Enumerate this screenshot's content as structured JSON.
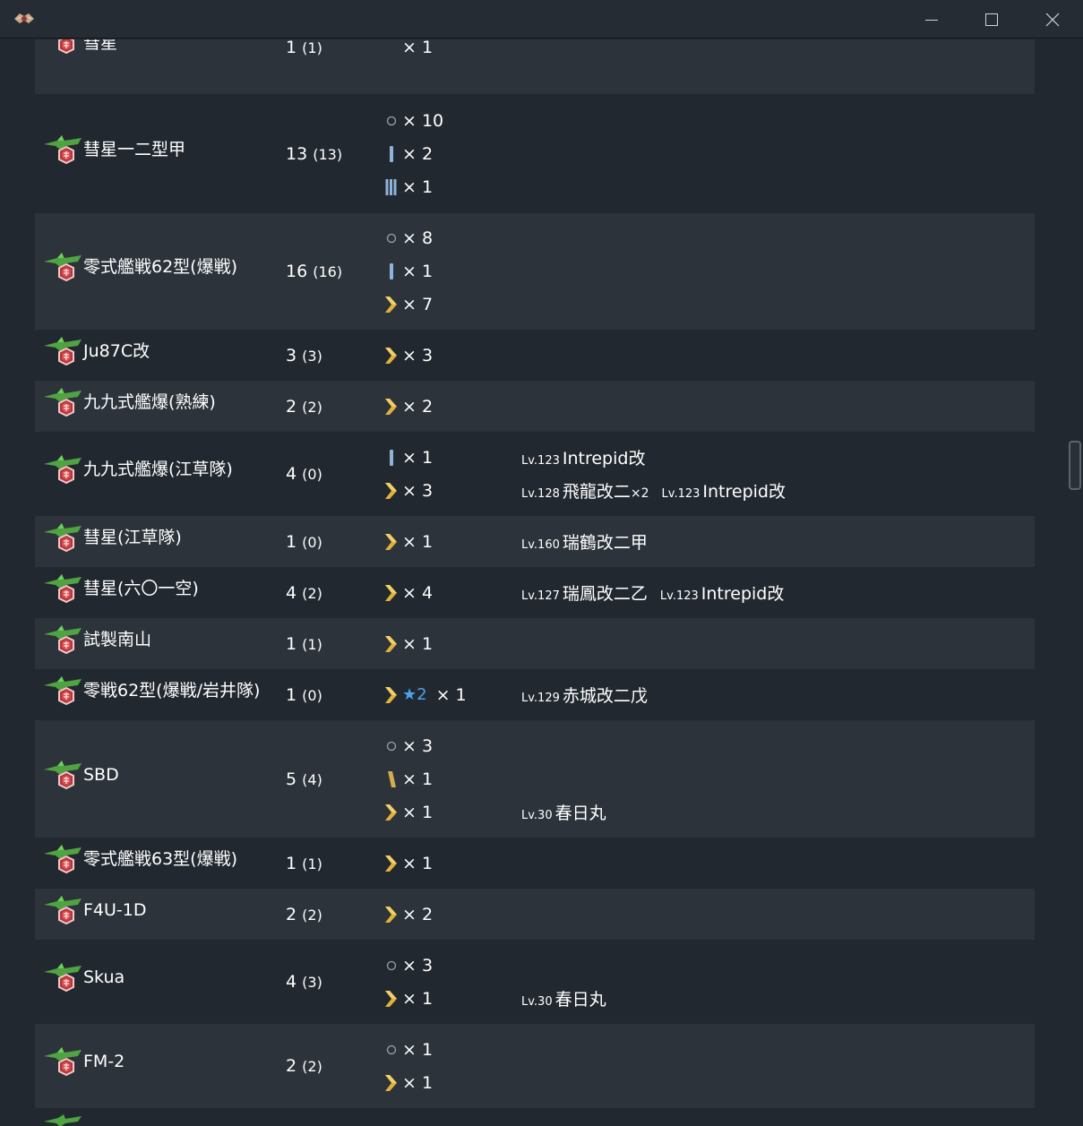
{
  "window": {
    "icon": "app-crest-icon",
    "controls": [
      "minimize-icon",
      "maximize-icon",
      "close-icon"
    ]
  },
  "equipment": [
    {
      "name": "彗星",
      "count": "1",
      "count_paren": "(1)",
      "levels": [
        {
          "type": "none",
          "mult": "× 1"
        }
      ]
    },
    {
      "name": "彗星一二型甲",
      "count": "13",
      "count_paren": "(13)",
      "levels": [
        {
          "type": "circle",
          "mult": "× 10"
        },
        {
          "type": "rank1",
          "mult": "× 2"
        },
        {
          "type": "rank3",
          "mult": "× 1"
        }
      ]
    },
    {
      "name": "零式艦戦62型(爆戦)",
      "count": "16",
      "count_paren": "(16)",
      "levels": [
        {
          "type": "circle",
          "mult": "× 8"
        },
        {
          "type": "rank1",
          "mult": "× 1"
        },
        {
          "type": "chevron",
          "mult": "× 7"
        }
      ]
    },
    {
      "name": "Ju87C改",
      "count": "3",
      "count_paren": "(3)",
      "levels": [
        {
          "type": "chevron",
          "mult": "× 3"
        }
      ]
    },
    {
      "name": "九九式艦爆(熟練)",
      "count": "2",
      "count_paren": "(2)",
      "levels": [
        {
          "type": "chevron",
          "mult": "× 2"
        }
      ]
    },
    {
      "name": "九九式艦爆(江草隊)",
      "count": "4",
      "count_paren": "(0)",
      "levels": [
        {
          "type": "rank1",
          "mult": "× 1",
          "ships": [
            {
              "lv": "Lv.123",
              "name": "Intrepid改",
              "cnt": ""
            }
          ]
        },
        {
          "type": "chevron",
          "mult": "× 3",
          "ships": [
            {
              "lv": "Lv.128",
              "name": "飛龍改二",
              "cnt": "×2"
            },
            {
              "lv": "Lv.123",
              "name": "Intrepid改",
              "cnt": ""
            }
          ]
        }
      ]
    },
    {
      "name": "彗星(江草隊)",
      "count": "1",
      "count_paren": "(0)",
      "levels": [
        {
          "type": "chevron",
          "mult": "× 1",
          "ships": [
            {
              "lv": "Lv.160",
              "name": "瑞鶴改二甲",
              "cnt": ""
            }
          ]
        }
      ]
    },
    {
      "name": "彗星(六〇一空)",
      "count": "4",
      "count_paren": "(2)",
      "levels": [
        {
          "type": "chevron",
          "mult": "× 4",
          "ships": [
            {
              "lv": "Lv.127",
              "name": "瑞鳳改二乙",
              "cnt": ""
            },
            {
              "lv": "Lv.123",
              "name": "Intrepid改",
              "cnt": ""
            }
          ]
        }
      ]
    },
    {
      "name": "試製南山",
      "count": "1",
      "count_paren": "(1)",
      "levels": [
        {
          "type": "chevron",
          "mult": "× 1"
        }
      ]
    },
    {
      "name": "零戦62型(爆戦/岩井隊)",
      "count": "1",
      "count_paren": "(0)",
      "levels": [
        {
          "type": "chevron",
          "star": "★",
          "star_val": "2",
          "mult": "× 1",
          "ships": [
            {
              "lv": "Lv.129",
              "name": "赤城改二戊",
              "cnt": ""
            }
          ]
        }
      ]
    },
    {
      "name": "SBD",
      "count": "5",
      "count_paren": "(4)",
      "levels": [
        {
          "type": "circle",
          "mult": "× 3"
        },
        {
          "type": "slash",
          "mult": "× 1"
        },
        {
          "type": "chevron",
          "mult": "× 1",
          "ships": [
            {
              "lv": "Lv.30",
              "name": "春日丸",
              "cnt": ""
            }
          ]
        }
      ]
    },
    {
      "name": "零式艦戦63型(爆戦)",
      "count": "1",
      "count_paren": "(1)",
      "levels": [
        {
          "type": "chevron",
          "mult": "× 1"
        }
      ]
    },
    {
      "name": "F4U-1D",
      "count": "2",
      "count_paren": "(2)",
      "levels": [
        {
          "type": "chevron",
          "mult": "× 2"
        }
      ]
    },
    {
      "name": "Skua",
      "count": "4",
      "count_paren": "(3)",
      "levels": [
        {
          "type": "circle",
          "mult": "× 3"
        },
        {
          "type": "chevron",
          "mult": "× 1",
          "ships": [
            {
              "lv": "Lv.30",
              "name": "春日丸",
              "cnt": ""
            }
          ]
        }
      ]
    },
    {
      "name": "FM-2",
      "count": "2",
      "count_paren": "(2)",
      "levels": [
        {
          "type": "circle",
          "mult": "× 1"
        },
        {
          "type": "chevron",
          "mult": "× 1"
        }
      ]
    }
  ]
}
